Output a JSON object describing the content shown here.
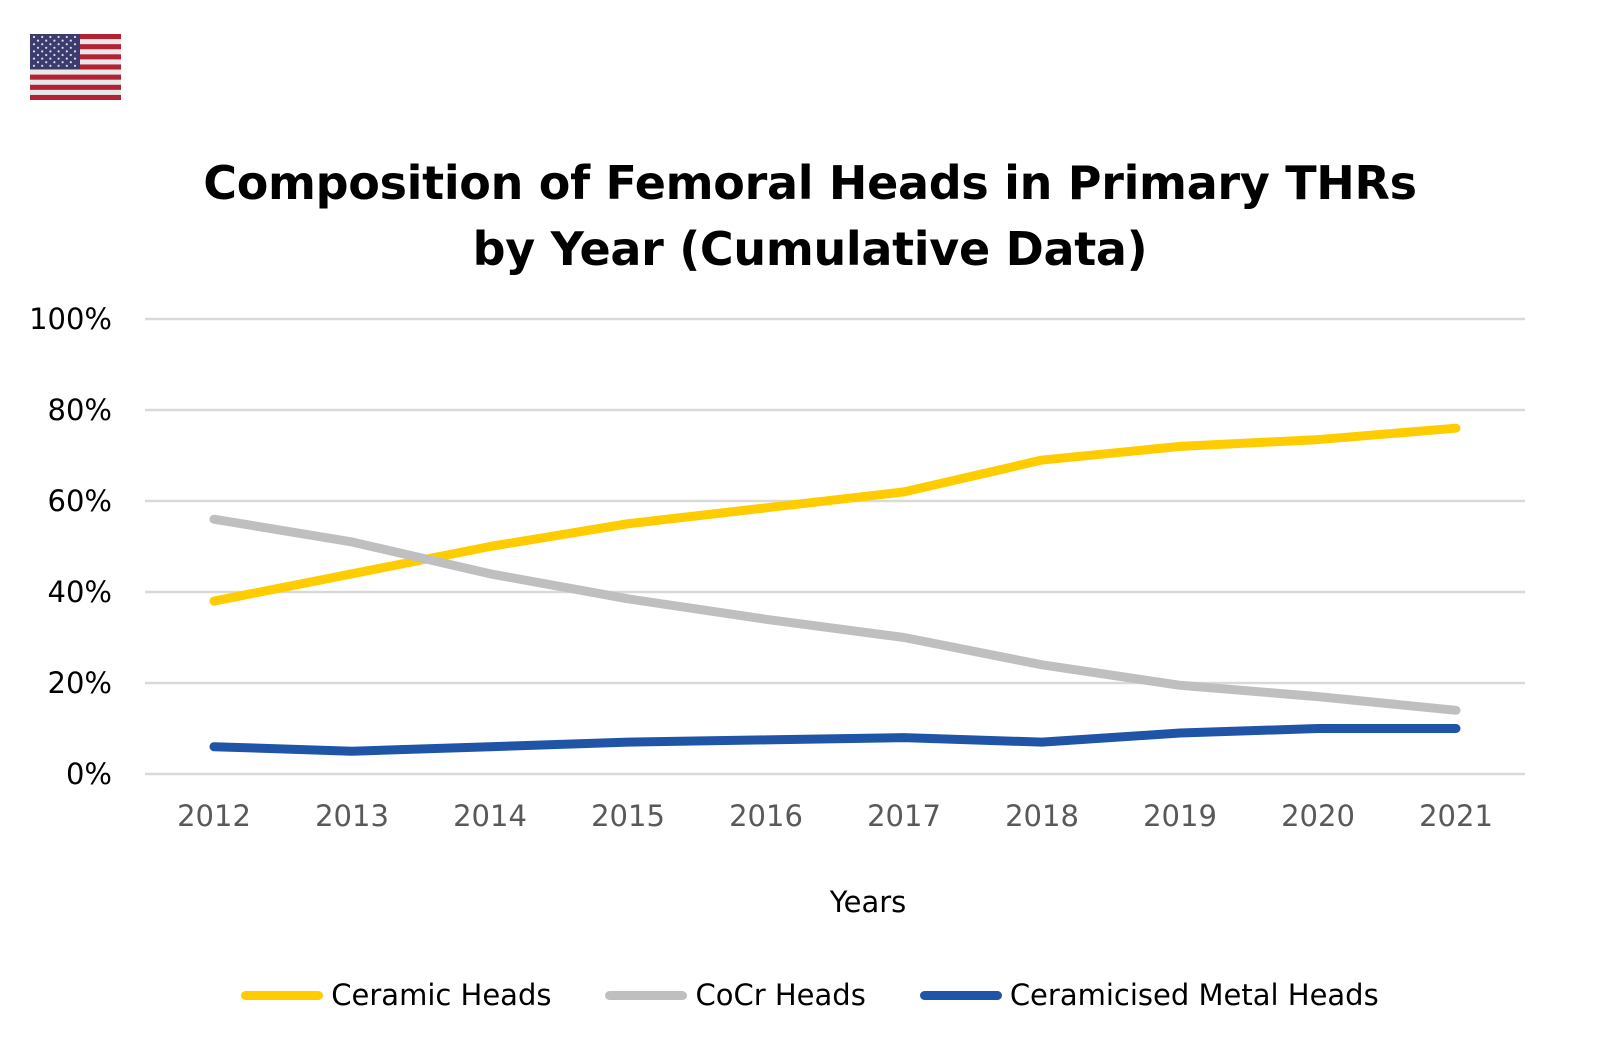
{
  "flag": {
    "icon": "us-flag-icon"
  },
  "chart_data": {
    "type": "line",
    "title": "Composition of Femoral Heads in Primary THRs by Year (Cumulative Data)",
    "title_lines": [
      "Composition of Femoral Heads in Primary THRs",
      "by Year (Cumulative Data)"
    ],
    "xlabel": "Years",
    "ylabel": "",
    "categories": [
      "2012",
      "2013",
      "2014",
      "2015",
      "2016",
      "2017",
      "2018",
      "2019",
      "2020",
      "2021"
    ],
    "ylim": [
      0,
      100
    ],
    "yticks": [
      0,
      20,
      40,
      60,
      80,
      100
    ],
    "ytick_labels": [
      "0%",
      "20%",
      "40%",
      "60%",
      "80%",
      "100%"
    ],
    "grid": true,
    "legend_position": "bottom",
    "series": [
      {
        "name": "Ceramic Heads",
        "color": "#FFCC00",
        "values": [
          38,
          44,
          50,
          55,
          58.5,
          62,
          69,
          72,
          73.5,
          76
        ]
      },
      {
        "name": "CoCr Heads",
        "color": "#BFBFBF",
        "values": [
          56,
          51,
          44,
          38.5,
          34,
          30,
          24,
          19.5,
          17,
          14
        ]
      },
      {
        "name": "Ceramicised Metal Heads",
        "color": "#1F54A6",
        "values": [
          6,
          5,
          6,
          7,
          7.5,
          8,
          7,
          9,
          10,
          10
        ]
      }
    ]
  }
}
